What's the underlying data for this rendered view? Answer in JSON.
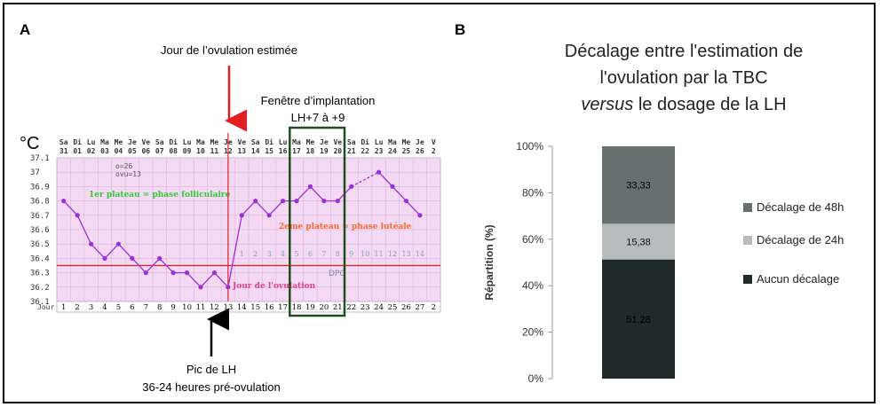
{
  "panel_a": {
    "label": "A",
    "unit": "°C",
    "annotation_ovulation_estimee": "Jour de l’ovulation estimée",
    "annotation_fenetre_line1": "Fenêtre d’implantation",
    "annotation_fenetre_line2": "LH+7 à +9",
    "annotation_pic_line1": "Pic de LH",
    "annotation_pic_line2": "36-24 heures pré-ovulation",
    "stats_line1": "o=26",
    "stats_line2": "ovu=13",
    "plateau1": "1er plateau = phase folliculaire",
    "plateau2": "2eme plateau = phase lutéale",
    "jour_ovulation": "Jour de l'ovulation",
    "dpo_label": "DPO",
    "jour_label": "Jour",
    "colors": {
      "grid_bg": "#f3d9f3",
      "line": "#9b30d9",
      "red": "#e02020",
      "plateau1": "#33cc33",
      "plateau2": "#ff6a2a",
      "ovul": "#e0408f",
      "window": "#1e4d1e"
    }
  },
  "panel_b": {
    "label": "B",
    "title_line1": "Décalage entre l'estimation de",
    "title_line2": "l'ovulation par la TBC",
    "title_line3_italic": "versus",
    "title_line3_rest": " le dosage de la LH",
    "colors": {
      "aucun": "#1f2a2b",
      "d24": "#b5bcbb",
      "d48": "#66706f"
    }
  },
  "chart_data": [
    {
      "type": "line",
      "title": "",
      "ylabel": "°C",
      "xlabel": "Jour",
      "ylim": [
        36.1,
        37.1
      ],
      "y_ticks": [
        "37.1",
        "37",
        "36.9",
        "36.8",
        "36.7",
        "36.6",
        "36.5",
        "36.4",
        "36.3",
        "36.2",
        "36.1"
      ],
      "days": [
        "1",
        "2",
        "3",
        "4",
        "5",
        "6",
        "7",
        "8",
        "9",
        "10",
        "11",
        "12",
        "13",
        "14",
        "15",
        "16",
        "17",
        "18",
        "19",
        "20",
        "21",
        "22",
        "23",
        "24",
        "25",
        "26",
        "27",
        "2"
      ],
      "weekday_labels": [
        "Sa",
        "Di",
        "Lu",
        "Ma",
        "Me",
        "Je",
        "Ve",
        "Sa",
        "Di",
        "Lu",
        "Ma",
        "Me",
        "Je",
        "Ve",
        "Sa",
        "Di",
        "Lu",
        "Ma",
        "Me",
        "Je",
        "Ve",
        "Sa",
        "Di",
        "Lu",
        "Ma",
        "Me",
        "Je",
        "V"
      ],
      "date_labels": [
        "31",
        "01",
        "02",
        "03",
        "04",
        "05",
        "06",
        "07",
        "08",
        "09",
        "10",
        "11",
        "12",
        "13",
        "14",
        "15",
        "16",
        "17",
        "18",
        "19",
        "20",
        "21",
        "22",
        "23",
        "24",
        "25",
        "26",
        "2"
      ],
      "dpo_numbers": [
        "1",
        "2",
        "3",
        "4",
        "5",
        "6",
        "7",
        "8",
        "9",
        "10",
        "11",
        "12",
        "13",
        "14"
      ],
      "temperatures": [
        36.8,
        36.7,
        36.5,
        36.4,
        36.5,
        36.4,
        36.3,
        36.4,
        36.3,
        36.3,
        36.2,
        36.3,
        36.2,
        36.7,
        36.8,
        36.7,
        36.8,
        36.8,
        36.9,
        36.8,
        36.8,
        36.9,
        null,
        37.0,
        36.9,
        36.8,
        36.7
      ],
      "coverline": 36.35,
      "ovulation_day": 13,
      "implantation_window_days": [
        18,
        21
      ]
    },
    {
      "type": "bar",
      "title": "Décalage entre l'estimation de l'ovulation par la TBC versus le dosage de la LH",
      "ylabel": "Répartition (%)",
      "y_ticks": [
        "0%",
        "20%",
        "40%",
        "60%",
        "80%",
        "100%"
      ],
      "ylim": [
        0,
        100
      ],
      "stacked": true,
      "series": [
        {
          "name": "Aucun décalage",
          "value": 51.28,
          "label": "51,28"
        },
        {
          "name": "Décalage de 24h",
          "value": 15.38,
          "label": "15,38"
        },
        {
          "name": "Décalage de 48h",
          "value": 33.33,
          "label": "33,33"
        }
      ]
    }
  ]
}
